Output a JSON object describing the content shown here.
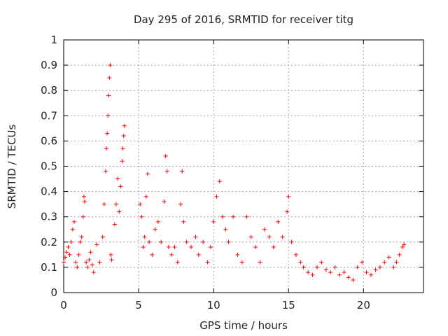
{
  "chart_data": {
    "type": "scatter",
    "title": "Day 295 of 2016, SRMTID for receiver titg",
    "xlabel": "GPS time / hours",
    "ylabel": "SRMTID / TECUs",
    "xlim": [
      0,
      24
    ],
    "ylim": [
      0,
      1
    ],
    "xticks": [
      0,
      5,
      10,
      15,
      20
    ],
    "xtick_labels": [
      "0",
      "5",
      "10",
      "15",
      "20"
    ],
    "yticks": [
      0,
      0.1,
      0.2,
      0.3,
      0.4,
      0.5,
      0.6,
      0.7,
      0.8,
      0.9,
      1
    ],
    "ytick_labels": [
      "0",
      "0.1",
      "0.2",
      "0.3",
      "0.4",
      "0.5",
      "0.6",
      "0.7",
      "0.8",
      "0.9",
      "1"
    ],
    "grid": true,
    "marker": "+",
    "color": "#ff0000",
    "series": [
      {
        "name": "SRMTID",
        "points": [
          [
            0.0,
            0.12
          ],
          [
            0.1,
            0.14
          ],
          [
            0.2,
            0.16
          ],
          [
            0.3,
            0.18
          ],
          [
            0.4,
            0.15
          ],
          [
            0.5,
            0.2
          ],
          [
            0.6,
            0.25
          ],
          [
            0.7,
            0.28
          ],
          [
            0.8,
            0.12
          ],
          [
            0.9,
            0.1
          ],
          [
            1.0,
            0.15
          ],
          [
            1.1,
            0.2
          ],
          [
            1.2,
            0.22
          ],
          [
            1.3,
            0.3
          ],
          [
            1.35,
            0.38
          ],
          [
            1.4,
            0.36
          ],
          [
            1.5,
            0.12
          ],
          [
            1.6,
            0.1
          ],
          [
            1.7,
            0.13
          ],
          [
            1.8,
            0.16
          ],
          [
            1.9,
            0.11
          ],
          [
            2.0,
            0.08
          ],
          [
            2.2,
            0.19
          ],
          [
            2.4,
            0.12
          ],
          [
            2.6,
            0.22
          ],
          [
            2.7,
            0.35
          ],
          [
            2.8,
            0.48
          ],
          [
            2.85,
            0.57
          ],
          [
            2.9,
            0.63
          ],
          [
            2.95,
            0.7
          ],
          [
            3.0,
            0.78
          ],
          [
            3.05,
            0.85
          ],
          [
            3.1,
            0.9
          ],
          [
            3.15,
            0.15
          ],
          [
            3.2,
            0.13
          ],
          [
            3.4,
            0.27
          ],
          [
            3.5,
            0.35
          ],
          [
            3.6,
            0.45
          ],
          [
            3.7,
            0.32
          ],
          [
            3.8,
            0.42
          ],
          [
            3.9,
            0.52
          ],
          [
            3.95,
            0.57
          ],
          [
            4.0,
            0.62
          ],
          [
            4.05,
            0.66
          ],
          [
            5.1,
            0.35
          ],
          [
            5.2,
            0.3
          ],
          [
            5.3,
            0.18
          ],
          [
            5.4,
            0.22
          ],
          [
            5.5,
            0.38
          ],
          [
            5.6,
            0.47
          ],
          [
            5.7,
            0.2
          ],
          [
            5.9,
            0.15
          ],
          [
            6.1,
            0.25
          ],
          [
            6.3,
            0.28
          ],
          [
            6.5,
            0.2
          ],
          [
            6.7,
            0.36
          ],
          [
            6.8,
            0.54
          ],
          [
            6.9,
            0.48
          ],
          [
            7.0,
            0.18
          ],
          [
            7.2,
            0.15
          ],
          [
            7.4,
            0.18
          ],
          [
            7.6,
            0.12
          ],
          [
            7.8,
            0.35
          ],
          [
            7.9,
            0.48
          ],
          [
            8.0,
            0.28
          ],
          [
            8.2,
            0.2
          ],
          [
            8.5,
            0.18
          ],
          [
            8.8,
            0.22
          ],
          [
            9.0,
            0.15
          ],
          [
            9.3,
            0.2
          ],
          [
            9.6,
            0.12
          ],
          [
            9.8,
            0.18
          ],
          [
            10.0,
            0.28
          ],
          [
            10.2,
            0.38
          ],
          [
            10.4,
            0.44
          ],
          [
            10.6,
            0.3
          ],
          [
            10.8,
            0.25
          ],
          [
            11.0,
            0.2
          ],
          [
            11.3,
            0.3
          ],
          [
            11.6,
            0.15
          ],
          [
            11.9,
            0.12
          ],
          [
            12.2,
            0.3
          ],
          [
            12.5,
            0.22
          ],
          [
            12.8,
            0.18
          ],
          [
            13.1,
            0.12
          ],
          [
            13.4,
            0.25
          ],
          [
            13.7,
            0.22
          ],
          [
            14.0,
            0.18
          ],
          [
            14.3,
            0.28
          ],
          [
            14.6,
            0.22
          ],
          [
            14.9,
            0.32
          ],
          [
            15.0,
            0.38
          ],
          [
            15.2,
            0.2
          ],
          [
            15.5,
            0.15
          ],
          [
            15.8,
            0.12
          ],
          [
            16.0,
            0.1
          ],
          [
            16.3,
            0.08
          ],
          [
            16.6,
            0.07
          ],
          [
            16.9,
            0.1
          ],
          [
            17.2,
            0.12
          ],
          [
            17.5,
            0.09
          ],
          [
            17.8,
            0.08
          ],
          [
            18.1,
            0.1
          ],
          [
            18.4,
            0.07
          ],
          [
            18.7,
            0.08
          ],
          [
            19.0,
            0.06
          ],
          [
            19.3,
            0.05
          ],
          [
            19.6,
            0.1
          ],
          [
            19.9,
            0.12
          ],
          [
            20.2,
            0.08
          ],
          [
            20.5,
            0.07
          ],
          [
            20.8,
            0.09
          ],
          [
            21.1,
            0.1
          ],
          [
            21.4,
            0.12
          ],
          [
            21.7,
            0.14
          ],
          [
            22.0,
            0.1
          ],
          [
            22.2,
            0.12
          ],
          [
            22.4,
            0.15
          ],
          [
            22.6,
            0.18
          ],
          [
            22.7,
            0.19
          ]
        ]
      }
    ]
  }
}
